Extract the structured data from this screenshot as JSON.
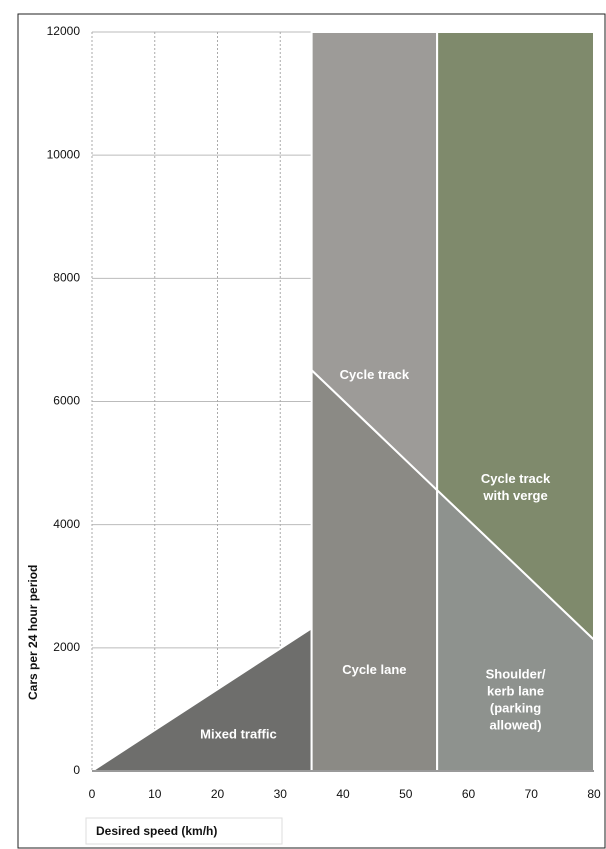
{
  "chart_data": {
    "type": "region",
    "xlabel": "Desired speed (km/h)",
    "ylabel": "Cars per 24 hour period",
    "xlim": [
      0,
      80
    ],
    "xticks": [
      0,
      10,
      20,
      30,
      40,
      50,
      60,
      70,
      80
    ],
    "ylim": [
      0,
      12000
    ],
    "yticks": [
      0,
      2000,
      4000,
      6000,
      8000,
      10000,
      12000
    ],
    "grid": true,
    "regions": [
      {
        "label": [
          "Mixed traffic"
        ],
        "color": "#6e6e6c",
        "x": [
          0,
          35,
          35
        ],
        "y": [
          0,
          0,
          2320
        ]
      },
      {
        "label": [
          "Cycle lane"
        ],
        "color": "#8b8a85",
        "x": [
          35,
          55,
          55,
          35
        ],
        "y": [
          0,
          0,
          4560,
          6510
        ]
      },
      {
        "label": [
          "Cycle track"
        ],
        "color": "#9d9b98",
        "x": [
          35,
          55,
          55,
          35
        ],
        "y": [
          6510,
          4560,
          12000,
          12000
        ]
      },
      {
        "label": [
          "Cycle track",
          "with verge"
        ],
        "color": "#7f8a6c",
        "x": [
          55,
          80,
          80,
          55
        ],
        "y": [
          4560,
          2130,
          12000,
          12000
        ]
      },
      {
        "label": [
          "Shoulder/",
          "kerb lane",
          "(parking",
          "allowed)"
        ],
        "color": "#8e928e",
        "x": [
          55,
          80,
          80,
          55
        ],
        "y": [
          0,
          0,
          2130,
          4560
        ]
      }
    ]
  }
}
